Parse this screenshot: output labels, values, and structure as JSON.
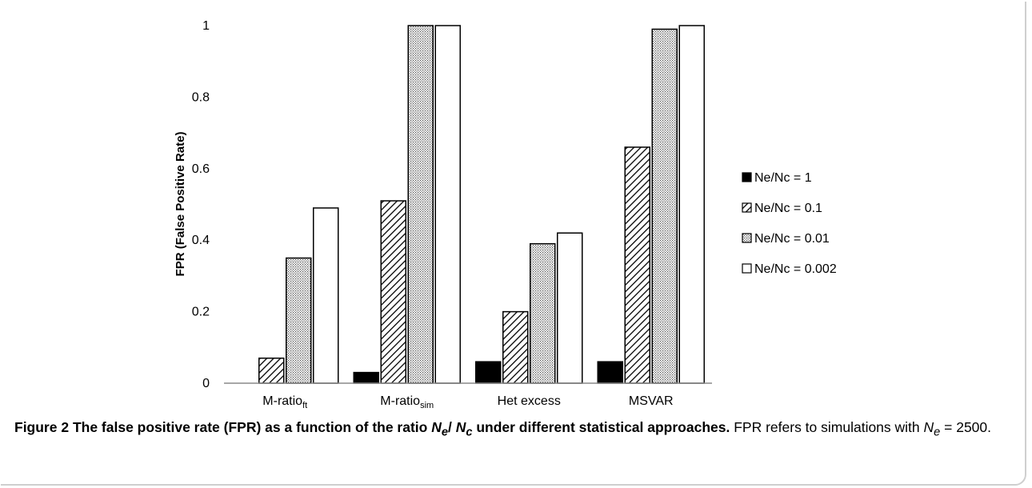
{
  "chart_data": {
    "type": "bar",
    "categories": [
      {
        "main": "M-ratio",
        "sub": "ft"
      },
      {
        "main": "M-ratio",
        "sub": "sim"
      },
      {
        "main": "Het excess",
        "sub": ""
      },
      {
        "main": "MSVAR",
        "sub": ""
      }
    ],
    "series": [
      {
        "name": "Ne/Nc = 1",
        "pattern": "solid",
        "values": [
          0,
          0.03,
          0.06,
          0.06
        ]
      },
      {
        "name": "Ne/Nc = 0.1",
        "pattern": "diagonal-hatch",
        "values": [
          0.07,
          0.51,
          0.2,
          0.66
        ]
      },
      {
        "name": "Ne/Nc = 0.01",
        "pattern": "dotted",
        "values": [
          0.35,
          1.0,
          0.39,
          0.99
        ]
      },
      {
        "name": "Ne/Nc = 0.002",
        "pattern": "empty",
        "values": [
          0.49,
          1.0,
          0.42,
          1.0
        ]
      }
    ],
    "ylabel": "FPR (False Positive Rate)",
    "ylim": [
      0,
      1
    ],
    "yticks": [
      0,
      0.2,
      0.4,
      0.6,
      0.8,
      1
    ],
    "ytick_labels": [
      "0",
      "0.2",
      "0.4",
      "0.6",
      "0.8",
      "1"
    ],
    "grid": false,
    "legend_position": "right"
  },
  "caption": {
    "figure_label": "Figure 2",
    "bold_pre": "The false positive rate (FPR) as a function of the ratio ",
    "ne": "N",
    "ne_sub": "e",
    "slash": "/ ",
    "nc": "N",
    "nc_sub": "c",
    "bold_post": " under different statistical approaches.",
    "rest_pre": " FPR refers to simulations with ",
    "ne2": "N",
    "ne2_sub": "e",
    "rest_post": " = 2500."
  }
}
